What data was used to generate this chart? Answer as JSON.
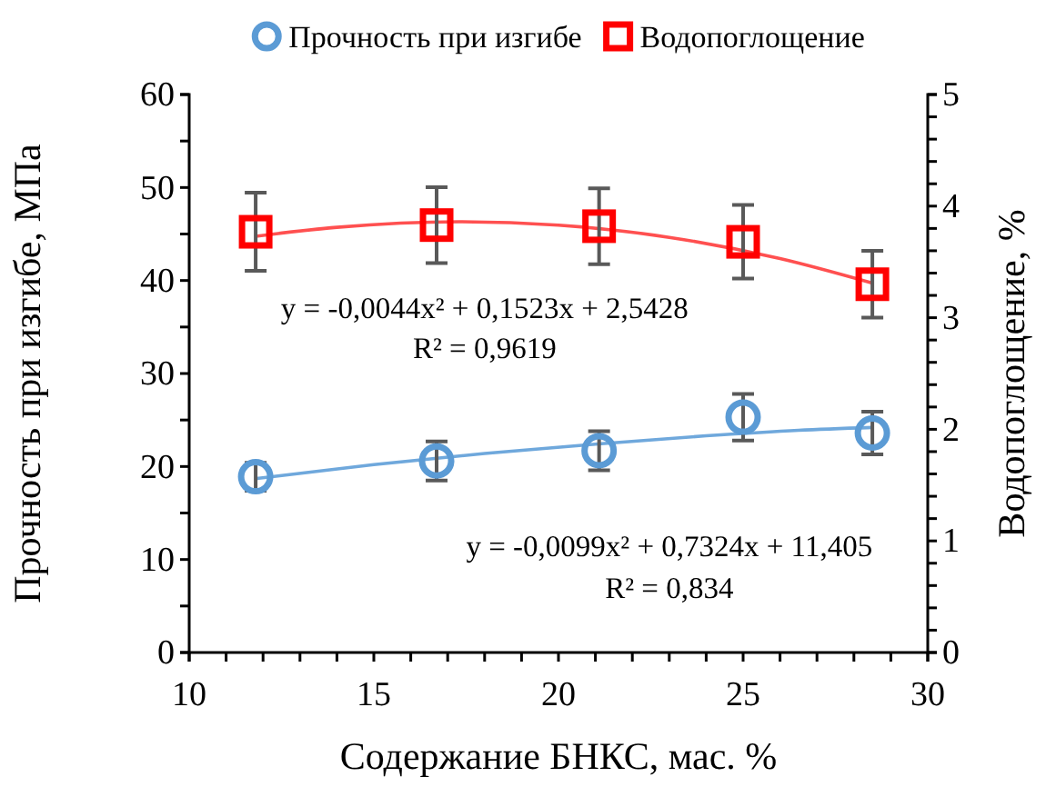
{
  "chart_data": {
    "type": "scatter",
    "xlabel": "Содержание БНКС, мас. %",
    "ylabel": "Прочность при изгибе, МПа",
    "y2label": "Водопоглощение, %",
    "xlim": [
      10,
      30
    ],
    "xticks": [
      10,
      {
        "value": 11,
        "label": null
      },
      {
        "value": 12,
        "label": null
      },
      {
        "value": 13,
        "label": null
      },
      {
        "value": 14,
        "label": null
      },
      15,
      {
        "value": 16,
        "label": null
      },
      {
        "value": 17,
        "label": null
      },
      {
        "value": 18,
        "label": null
      },
      {
        "value": 19,
        "label": null
      },
      20,
      {
        "value": 21,
        "label": null
      },
      {
        "value": 22,
        "label": null
      },
      {
        "value": 23,
        "label": null
      },
      {
        "value": 24,
        "label": null
      },
      25,
      {
        "value": 26,
        "label": null
      },
      {
        "value": 27,
        "label": null
      },
      {
        "value": 28,
        "label": null
      },
      {
        "value": 29,
        "label": null
      },
      30
    ],
    "ylim": [
      0,
      60
    ],
    "yticks": [
      0,
      {
        "value": 5,
        "label": null
      },
      10,
      {
        "value": 15,
        "label": null
      },
      20,
      {
        "value": 25,
        "label": null
      },
      30,
      {
        "value": 35,
        "label": null
      },
      40,
      {
        "value": 45,
        "label": null
      },
      50,
      {
        "value": 55,
        "label": null
      },
      60
    ],
    "y2lim": [
      0,
      5
    ],
    "y2ticks": [
      0,
      {
        "value": 0.2,
        "label": null
      },
      {
        "value": 0.4,
        "label": null
      },
      {
        "value": 0.6,
        "label": null
      },
      {
        "value": 0.8,
        "label": null
      },
      1,
      {
        "value": 1.2,
        "label": null
      },
      {
        "value": 1.4,
        "label": null
      },
      {
        "value": 1.6,
        "label": null
      },
      {
        "value": 1.8,
        "label": null
      },
      2,
      {
        "value": 2.2,
        "label": null
      },
      {
        "value": 2.4,
        "label": null
      },
      {
        "value": 2.6,
        "label": null
      },
      {
        "value": 2.8,
        "label": null
      },
      3,
      {
        "value": 3.2,
        "label": null
      },
      {
        "value": 3.4,
        "label": null
      },
      {
        "value": 3.6,
        "label": null
      },
      {
        "value": 3.8,
        "label": null
      },
      4,
      {
        "value": 4.2,
        "label": null
      },
      {
        "value": 4.4,
        "label": null
      },
      {
        "value": 4.6,
        "label": null
      },
      {
        "value": 4.8,
        "label": null
      },
      5
    ],
    "grid": false,
    "legend": "top",
    "series": [
      {
        "name": "Прочность при изгибе",
        "marker": "circle",
        "color": "#5b9bd5",
        "x": [
          11.8,
          16.7,
          21.1,
          25.0,
          28.5
        ],
        "values": [
          18.9,
          20.6,
          21.7,
          25.3,
          23.6
        ],
        "errors": [
          1.5,
          2.1,
          2.1,
          2.5,
          2.3
        ]
      },
      {
        "name": "Водопоглощение",
        "marker": "square",
        "axis": "y2",
        "color": "#ff0000",
        "x": [
          11.8,
          16.7,
          21.1,
          25.0,
          28.5
        ],
        "values": [
          3.77,
          3.83,
          3.82,
          3.68,
          3.3
        ],
        "errors": [
          0.35,
          0.34,
          0.34,
          0.33,
          0.3
        ]
      },
      {
        "type": "line",
        "marker": "none",
        "color": "#6fa8dc",
        "x": [
          11.8,
          15,
          18,
          21,
          24,
          26.5,
          28.5
        ],
        "values": [
          18.7,
          20.2,
          21.4,
          22.4,
          23.3,
          23.9,
          24.2
        ]
      },
      {
        "type": "line",
        "marker": "none",
        "axis": "y2",
        "color": "#ff5050",
        "x": [
          11.8,
          14,
          17.3,
          20,
          23,
          26,
          28.5
        ],
        "values": [
          3.73,
          3.81,
          3.86,
          3.83,
          3.72,
          3.53,
          3.31
        ]
      }
    ],
    "annotations": [
      "y = -0,0044x² + 0,1523x + 2,5428",
      "R² = 0,9619",
      "y = -0,0099x² + 0,7324x + 11,405",
      "R² = 0,834"
    ]
  }
}
